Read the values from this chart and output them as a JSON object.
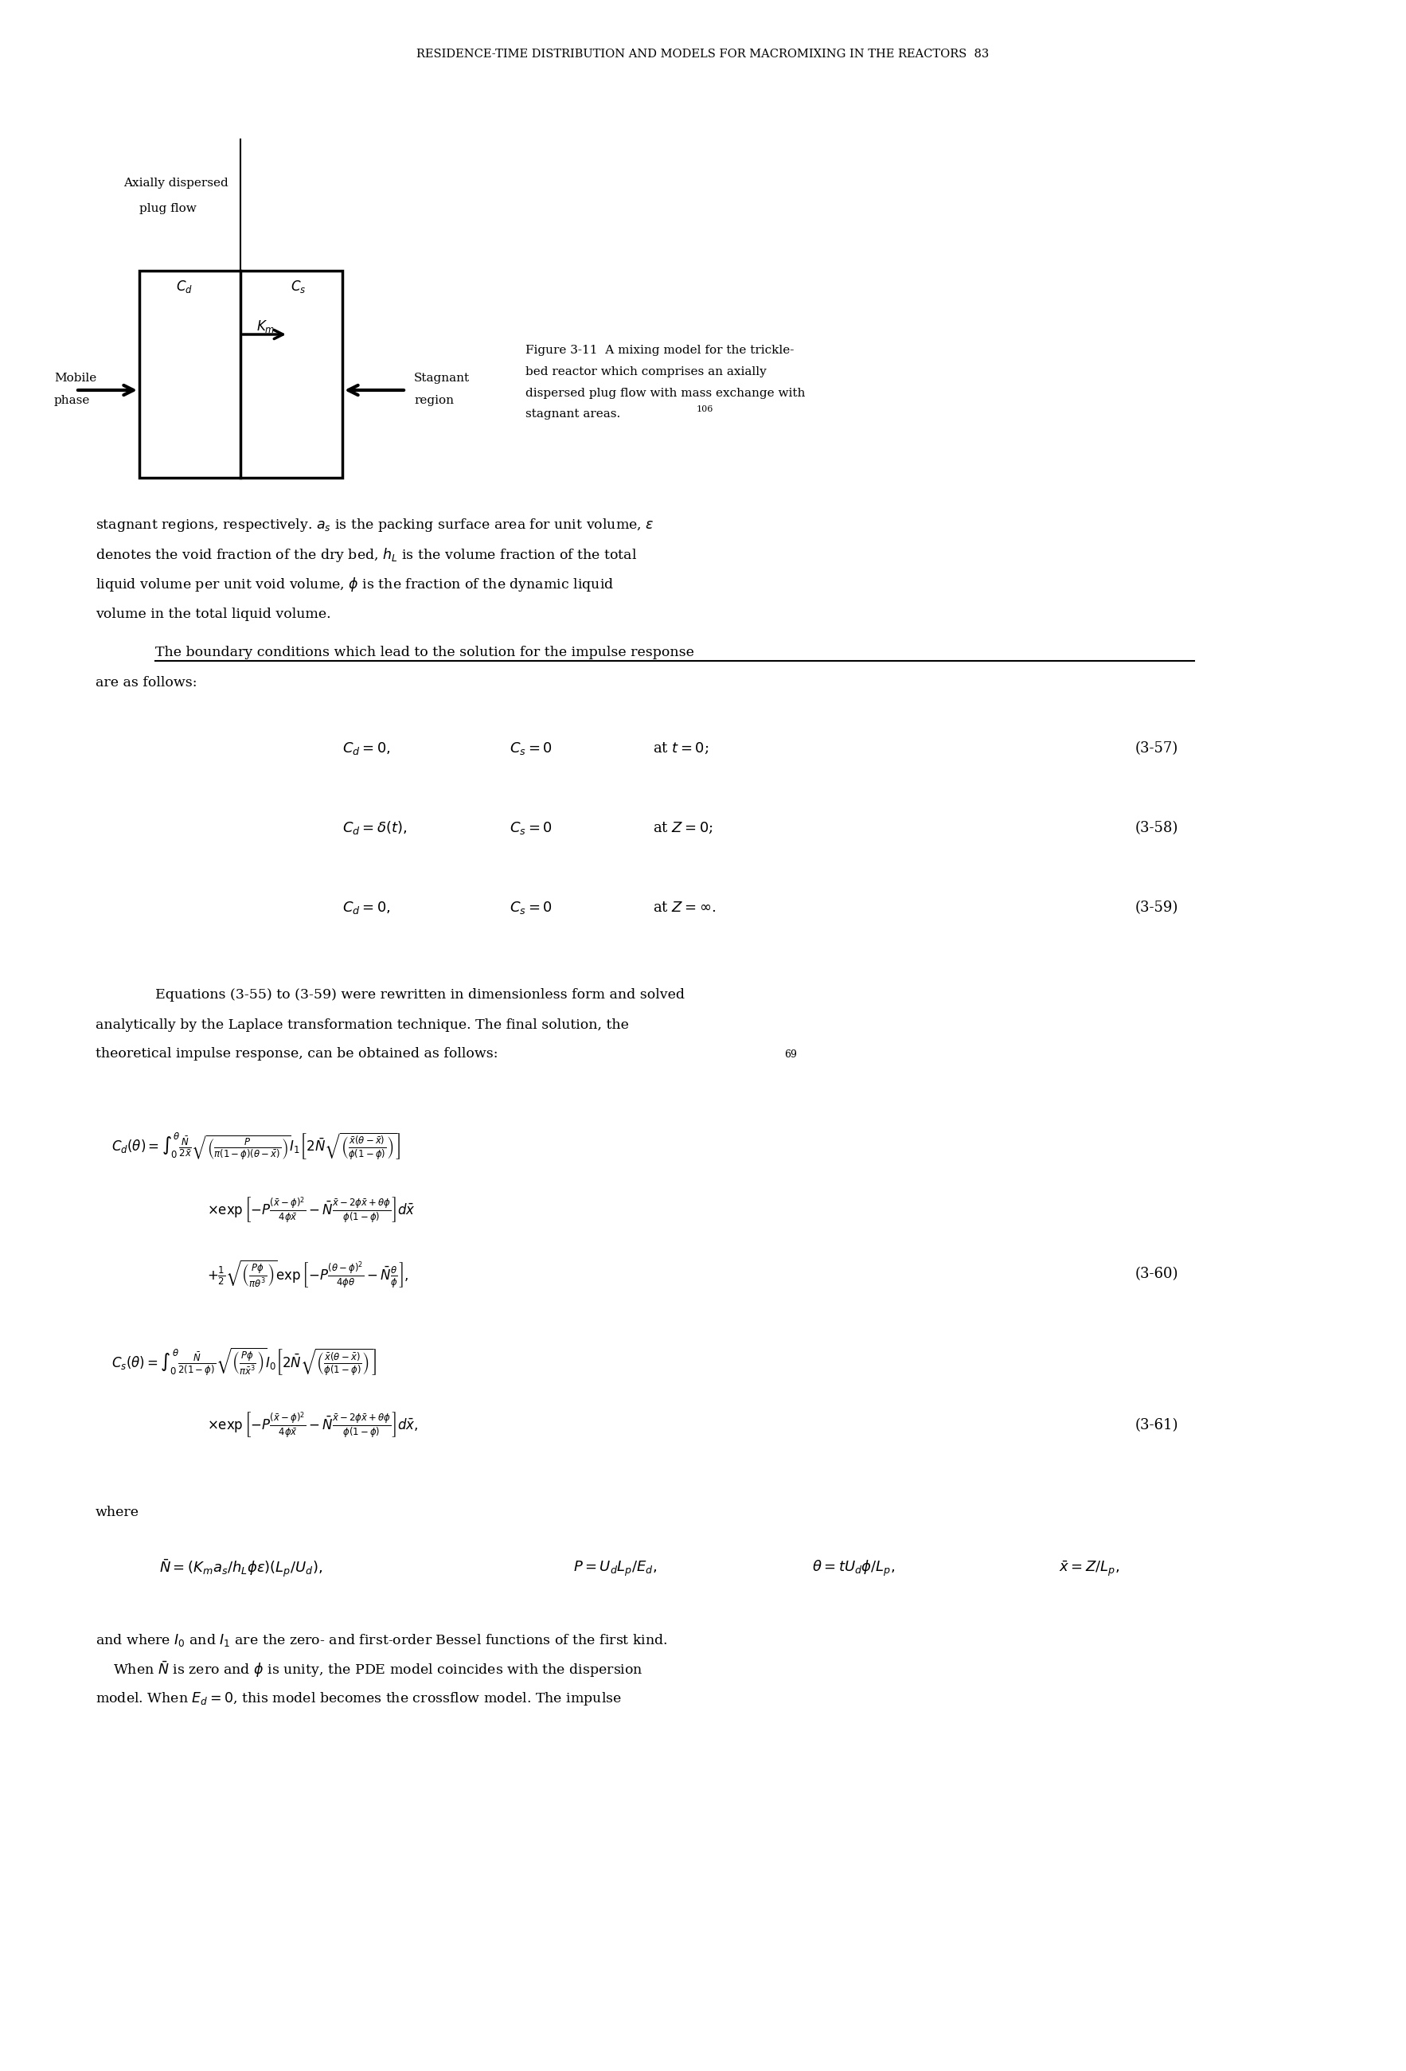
{
  "header": "RESIDENCE-TIME DISTRIBUTION AND MODELS FOR MACROMIXING IN THE REACTORS  83",
  "fig_label": "Axially dispersed\n    plug flow",
  "fig_caption": "Figure 3-11  A mixing model for the trickle-\nbed reactor which comprises an axially\ndispersed plug flow with mass exchange with\nstagnant areas.",
  "fig_caption_ref": "106",
  "mobile_label": "Mobile\nphase",
  "stagnant_label": "Stagnant\nregion",
  "cd_label": "C_d",
  "cs_label": "C_s",
  "km_label": "K_m",
  "para1": "stagnant regions, respectively. $a_s$ is the packing surface area for unit volume, $\\varepsilon$\ndenotes the void fraction of the dry bed, $h_L$ is the volume fraction of the total\nliquid volume per unit void volume, $\\phi$ is the fraction of the dynamic liquid\nvolume in the total liquid volume.",
  "para2_underline": "The boundary conditions which lead to the solution for the impulse response",
  "para2_rest": "\nare as follows:",
  "eq57_left": "$C_d = 0,$",
  "eq57_mid": "$C_s = 0$",
  "eq57_right": "at $t = 0$;",
  "eq57_num": "(3-57)",
  "eq58_left": "$C_d = \\delta(t),$",
  "eq58_mid": "$C_s = 0$",
  "eq58_right": "at $Z = 0$;",
  "eq58_num": "(3-58)",
  "eq59_left": "$C_d = 0,$",
  "eq59_mid": "$C_s = 0$",
  "eq59_right": "at $Z = \\infty$.",
  "eq59_num": "(3-59)",
  "para3": "Equations (3-55) to (3-59) were rewritten in dimensionless form and solved\nanalytically by the Laplace transformation technique. The final solution, the\ntheoretical impulse response, can be obtained as follows:",
  "para3_ref": "69",
  "eq60_num": "(3-60)",
  "eq61_num": "(3-61)",
  "para4a": "where",
  "para4b": "$\\bar{N} = (K_m a_s / h_L \\phi \\varepsilon)(L_p/U_d),$",
  "para4c": "$P = U_d L_p / E_d,$",
  "para4d": "$\\theta = t U_d \\phi / L_p,$",
  "para4e": "$\\bar{x} = Z/L_p,$",
  "para5": "and where $I_0$ and $I_1$ are the zero- and first-order Bessel functions of the first kind.\n    When $\\bar{N}$ is zero and $\\phi$ is unity, the PDE model coincides with the dispersion\nmodel. When $E_d = 0$, this model becomes the crossflow model. The impulse",
  "background_color": "#ffffff",
  "text_color": "#000000"
}
